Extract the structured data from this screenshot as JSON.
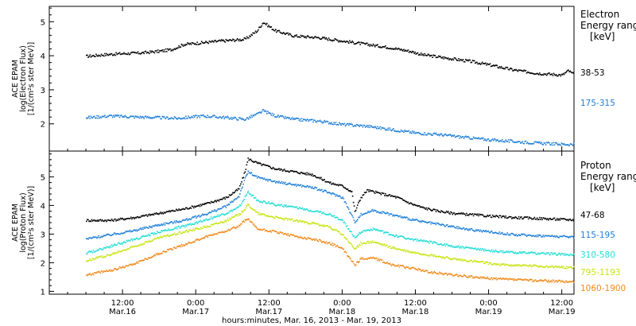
{
  "chart_data": [
    {
      "type": "scatter",
      "ylabel_lines": [
        "ACE EPAM",
        "log(Electron Flux)",
        "[1/(cm²s ster MeV)]"
      ],
      "ylim": [
        1.2,
        5.45
      ],
      "yticks": [
        "2",
        "3",
        "4",
        "5"
      ],
      "legend_title_lines": [
        "Electron",
        "Energy ranges",
        "[keV]"
      ],
      "legend_placement": "right",
      "series": [
        {
          "name": "38-53",
          "color": "#000000",
          "points": [
            [
              0,
              4.0
            ],
            [
              3,
              4.05
            ],
            [
              6,
              4.08
            ],
            [
              9,
              4.1
            ],
            [
              12,
              4.15
            ],
            [
              14,
              4.2
            ],
            [
              16,
              4.35
            ],
            [
              19,
              4.4
            ],
            [
              22,
              4.45
            ],
            [
              26,
              4.5
            ],
            [
              28,
              4.75
            ],
            [
              29,
              5.0
            ],
            [
              31,
              4.75
            ],
            [
              34,
              4.6
            ],
            [
              38,
              4.55
            ],
            [
              42,
              4.45
            ],
            [
              46,
              4.35
            ],
            [
              50,
              4.25
            ],
            [
              53,
              4.15
            ],
            [
              55,
              4.05
            ],
            [
              59,
              3.95
            ],
            [
              63,
              3.85
            ],
            [
              66,
              3.75
            ],
            [
              70,
              3.6
            ],
            [
              74,
              3.5
            ],
            [
              78,
              3.45
            ],
            [
              79,
              3.58
            ],
            [
              80,
              3.45
            ],
            [
              82,
              3.35
            ],
            [
              84,
              3.3
            ],
            [
              86,
              3.28
            ]
          ]
        },
        {
          "name": "175-315",
          "color": "#1f7fd8",
          "points": [
            [
              0,
              2.2
            ],
            [
              4,
              2.25
            ],
            [
              8,
              2.22
            ],
            [
              12,
              2.2
            ],
            [
              15,
              2.18
            ],
            [
              19,
              2.25
            ],
            [
              23,
              2.2
            ],
            [
              26,
              2.15
            ],
            [
              28,
              2.3
            ],
            [
              29,
              2.4
            ],
            [
              31,
              2.25
            ],
            [
              34,
              2.15
            ],
            [
              38,
              2.1
            ],
            [
              42,
              2.0
            ],
            [
              46,
              1.95
            ],
            [
              50,
              1.85
            ],
            [
              54,
              1.75
            ],
            [
              58,
              1.7
            ],
            [
              62,
              1.62
            ],
            [
              66,
              1.55
            ],
            [
              70,
              1.5
            ],
            [
              74,
              1.45
            ],
            [
              78,
              1.42
            ],
            [
              82,
              1.4
            ],
            [
              86,
              1.38
            ]
          ]
        }
      ]
    },
    {
      "type": "scatter",
      "ylabel_lines": [
        "ACE EPAM",
        "log(Proton Flux)",
        "[1/(cm²s ster MeV)]"
      ],
      "ylim": [
        0.9,
        5.9
      ],
      "yticks": [
        "1",
        "2",
        "3",
        "4",
        "5"
      ],
      "legend_title_lines": [
        "Proton",
        "Energy ranges",
        "[keV]"
      ],
      "legend_placement": "right",
      "xticks": [
        {
          "hours": 6,
          "time": "12:00",
          "date": "Mar.16"
        },
        {
          "hours": 18,
          "time": "0:00",
          "date": "Mar.17"
        },
        {
          "hours": 30,
          "time": "12:00",
          "date": "Mar.17"
        },
        {
          "hours": 42,
          "time": "0:00",
          "date": "Mar.18"
        },
        {
          "hours": 54,
          "time": "12:00",
          "date": "Mar.18"
        },
        {
          "hours": 66,
          "time": "0:00",
          "date": "Mar.19"
        },
        {
          "hours": 78,
          "time": "12:00",
          "date": "Mar.19"
        }
      ],
      "xlabel": "hours:minutes, Mar. 16, 2013 - Mar. 19, 2013",
      "series": [
        {
          "name": "47-68",
          "color": "#000000",
          "points": [
            [
              0,
              3.5
            ],
            [
              4,
              3.5
            ],
            [
              8,
              3.6
            ],
            [
              12,
              3.75
            ],
            [
              16,
              3.9
            ],
            [
              20,
              4.1
            ],
            [
              23,
              4.3
            ],
            [
              25,
              4.6
            ],
            [
              26,
              5.2
            ],
            [
              26.5,
              5.65
            ],
            [
              28,
              5.5
            ],
            [
              31,
              5.3
            ],
            [
              34,
              5.2
            ],
            [
              37,
              5.1
            ],
            [
              40,
              4.8
            ],
            [
              42,
              4.7
            ],
            [
              43.5,
              4.5
            ],
            [
              44,
              3.8
            ],
            [
              45,
              4.3
            ],
            [
              46,
              4.55
            ],
            [
              48,
              4.45
            ],
            [
              51,
              4.3
            ],
            [
              53,
              4.1
            ],
            [
              55,
              3.95
            ],
            [
              57,
              3.85
            ],
            [
              60,
              3.75
            ],
            [
              63,
              3.7
            ],
            [
              66,
              3.65
            ],
            [
              70,
              3.6
            ],
            [
              76,
              3.55
            ],
            [
              82,
              3.5
            ],
            [
              86,
              3.48
            ]
          ]
        },
        {
          "name": "115-195",
          "color": "#1f7fd8",
          "points": [
            [
              0,
              2.85
            ],
            [
              4,
              3.0
            ],
            [
              8,
              3.15
            ],
            [
              12,
              3.35
            ],
            [
              16,
              3.5
            ],
            [
              20,
              3.75
            ],
            [
              23,
              4.0
            ],
            [
              25,
              4.35
            ],
            [
              26,
              4.95
            ],
            [
              26.5,
              5.2
            ],
            [
              28,
              5.0
            ],
            [
              31,
              4.85
            ],
            [
              34,
              4.75
            ],
            [
              37,
              4.65
            ],
            [
              40,
              4.45
            ],
            [
              42,
              4.3
            ],
            [
              44,
              3.45
            ],
            [
              45,
              3.7
            ],
            [
              47,
              3.85
            ],
            [
              49,
              3.75
            ],
            [
              52,
              3.6
            ],
            [
              55,
              3.45
            ],
            [
              58,
              3.35
            ],
            [
              62,
              3.2
            ],
            [
              66,
              3.1
            ],
            [
              70,
              3.0
            ],
            [
              76,
              2.95
            ],
            [
              82,
              2.9
            ],
            [
              86,
              2.85
            ]
          ]
        },
        {
          "name": "310-580",
          "color": "#22ddd5",
          "points": [
            [
              0,
              2.35
            ],
            [
              4,
              2.6
            ],
            [
              8,
              2.85
            ],
            [
              12,
              3.1
            ],
            [
              16,
              3.3
            ],
            [
              20,
              3.55
            ],
            [
              23,
              3.75
            ],
            [
              25,
              3.95
            ],
            [
              26,
              4.3
            ],
            [
              26.5,
              4.5
            ],
            [
              28,
              4.2
            ],
            [
              31,
              4.05
            ],
            [
              34,
              3.95
            ],
            [
              37,
              3.85
            ],
            [
              40,
              3.7
            ],
            [
              42,
              3.5
            ],
            [
              44,
              2.9
            ],
            [
              45,
              3.1
            ],
            [
              47,
              3.2
            ],
            [
              50,
              3.0
            ],
            [
              53,
              2.85
            ],
            [
              56,
              2.75
            ],
            [
              60,
              2.6
            ],
            [
              64,
              2.5
            ],
            [
              68,
              2.4
            ],
            [
              74,
              2.35
            ],
            [
              80,
              2.3
            ],
            [
              86,
              2.2
            ]
          ]
        },
        {
          "name": "795-1193",
          "color": "#c8e414",
          "points": [
            [
              0,
              2.1
            ],
            [
              4,
              2.3
            ],
            [
              8,
              2.6
            ],
            [
              12,
              2.9
            ],
            [
              16,
              3.1
            ],
            [
              20,
              3.3
            ],
            [
              23,
              3.5
            ],
            [
              25,
              3.7
            ],
            [
              26,
              3.9
            ],
            [
              26.5,
              4.05
            ],
            [
              28,
              3.75
            ],
            [
              31,
              3.6
            ],
            [
              34,
              3.5
            ],
            [
              37,
              3.4
            ],
            [
              40,
              3.25
            ],
            [
              42,
              3.0
            ],
            [
              44,
              2.5
            ],
            [
              45,
              2.7
            ],
            [
              47,
              2.75
            ],
            [
              50,
              2.55
            ],
            [
              53,
              2.4
            ],
            [
              56,
              2.3
            ],
            [
              60,
              2.15
            ],
            [
              64,
              2.05
            ],
            [
              68,
              1.95
            ],
            [
              74,
              1.9
            ],
            [
              80,
              1.85
            ],
            [
              86,
              1.75
            ]
          ]
        },
        {
          "name": "1060-1900",
          "color": "#f08a1c",
          "points": [
            [
              0,
              1.6
            ],
            [
              4,
              1.75
            ],
            [
              8,
              2.0
            ],
            [
              12,
              2.35
            ],
            [
              16,
              2.65
            ],
            [
              20,
              2.95
            ],
            [
              23,
              3.15
            ],
            [
              25,
              3.3
            ],
            [
              26,
              3.5
            ],
            [
              26.5,
              3.55
            ],
            [
              28,
              3.2
            ],
            [
              31,
              3.1
            ],
            [
              34,
              2.95
            ],
            [
              37,
              2.85
            ],
            [
              40,
              2.7
            ],
            [
              42,
              2.5
            ],
            [
              44,
              1.95
            ],
            [
              45,
              2.15
            ],
            [
              47,
              2.2
            ],
            [
              50,
              1.95
            ],
            [
              53,
              1.85
            ],
            [
              56,
              1.7
            ],
            [
              60,
              1.6
            ],
            [
              64,
              1.5
            ],
            [
              68,
              1.45
            ],
            [
              74,
              1.4
            ],
            [
              80,
              1.35
            ],
            [
              86,
              1.2
            ]
          ]
        }
      ]
    }
  ]
}
